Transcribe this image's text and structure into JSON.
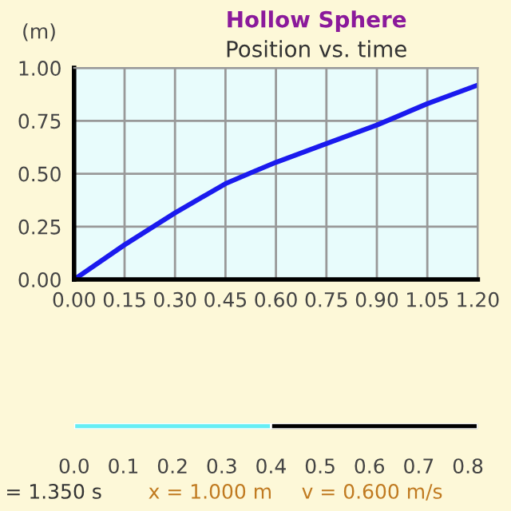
{
  "chart_data": [
    {
      "type": "line",
      "title": "Hollow Sphere",
      "subtitle": "Position vs. time",
      "ylabel": "(m)",
      "x": [
        0,
        0.15,
        0.3,
        0.45,
        0.525,
        0.6,
        0.75,
        0.9,
        1.05,
        1.2
      ],
      "series": [
        {
          "color": "#1a1aee",
          "values": [
            0,
            0.164,
            0.315,
            0.453,
            0.504,
            0.554,
            0.642,
            0.73,
            0.831,
            0.919
          ]
        }
      ],
      "xlim": [
        0,
        1.2
      ],
      "ylim": [
        0,
        1.0
      ],
      "xticks": [
        {
          "value": 0,
          "label": "0.00"
        },
        {
          "value": 0.15,
          "label": "0.15"
        },
        {
          "value": 0.3,
          "label": "0.30"
        },
        {
          "value": 0.45,
          "label": "0.45"
        },
        {
          "value": 0.6,
          "label": "0.60"
        },
        {
          "value": 0.75,
          "label": "0.75"
        },
        {
          "value": 0.9,
          "label": "0.90"
        },
        {
          "value": 1.05,
          "label": "1.05"
        },
        {
          "value": 1.2,
          "label": "1.20"
        }
      ],
      "yticks": [
        {
          "value": 0,
          "label": "0.00"
        },
        {
          "value": 0.25,
          "label": "0.25"
        },
        {
          "value": 0.5,
          "label": "0.50"
        },
        {
          "value": 0.75,
          "label": "0.75"
        },
        {
          "value": 1.0,
          "label": "1.00"
        }
      ],
      "grid": true,
      "marker": "none",
      "line_style": "solid"
    },
    {
      "type": "bar",
      "orientation": "horizontal",
      "stacked": true,
      "categories": [
        null
      ],
      "series": [
        {
          "color": "#66eef4",
          "values": [
            0.4
          ]
        },
        {
          "color": "#000000",
          "values": [
            0.42
          ]
        }
      ],
      "xlim": [
        0,
        0.82
      ],
      "xticks": [
        {
          "value": 0,
          "label": "0.0"
        },
        {
          "value": 0.1,
          "label": "0.1"
        },
        {
          "value": 0.2,
          "label": "0.2"
        },
        {
          "value": 0.3,
          "label": "0.3"
        },
        {
          "value": 0.4,
          "label": "0.4"
        },
        {
          "value": 0.5,
          "label": "0.5"
        },
        {
          "value": 0.6,
          "label": "0.6"
        },
        {
          "value": 0.7,
          "label": "0.7"
        },
        {
          "value": 0.8,
          "label": "0.8"
        }
      ],
      "annotations": [
        "= 1.350 s",
        "x = 1.000 m",
        "v = 0.600 m/s"
      ]
    }
  ]
}
